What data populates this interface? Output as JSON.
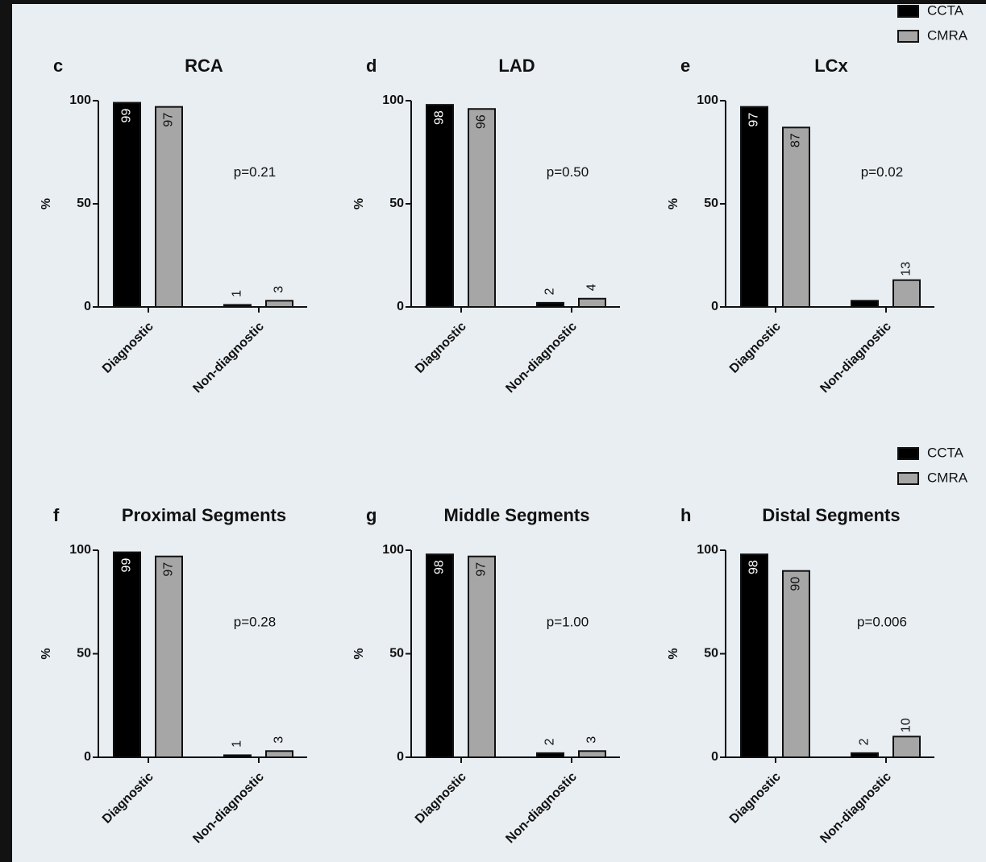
{
  "chart_data": [
    {
      "type": "bar",
      "panel": "c",
      "title": "RCA",
      "ylabel": "%",
      "annotation": "p=0.21",
      "categories": [
        "Diagnostic",
        "Non-diagnostic"
      ],
      "series": [
        {
          "name": "CCTA",
          "color": "#000000",
          "values": [
            99,
            1
          ]
        },
        {
          "name": "CMRA",
          "color": "#a6a6a6",
          "values": [
            97,
            3
          ]
        }
      ],
      "ylim": [
        0,
        100
      ],
      "yticks": [
        0,
        50,
        100
      ]
    },
    {
      "type": "bar",
      "panel": "d",
      "title": "LAD",
      "ylabel": "%",
      "annotation": "p=0.50",
      "categories": [
        "Diagnostic",
        "Non-diagnostic"
      ],
      "series": [
        {
          "name": "CCTA",
          "color": "#000000",
          "values": [
            98,
            2
          ]
        },
        {
          "name": "CMRA",
          "color": "#a6a6a6",
          "values": [
            96,
            4
          ]
        }
      ],
      "ylim": [
        0,
        100
      ],
      "yticks": [
        0,
        50,
        100
      ]
    },
    {
      "type": "bar",
      "panel": "e",
      "title": "LCx",
      "ylabel": "%",
      "annotation": "p=0.02",
      "categories": [
        "Diagnostic",
        "Non-diagnostic"
      ],
      "series": [
        {
          "name": "CCTA",
          "color": "#000000",
          "values": [
            97,
            3
          ],
          "value_labels": [
            "97",
            null
          ]
        },
        {
          "name": "CMRA",
          "color": "#a6a6a6",
          "values": [
            87,
            13
          ]
        }
      ],
      "ylim": [
        0,
        100
      ],
      "yticks": [
        0,
        50,
        100
      ],
      "legend": "top-right"
    },
    {
      "type": "bar",
      "panel": "f",
      "title": "Proximal Segments",
      "ylabel": "%",
      "annotation": "p=0.28",
      "categories": [
        "Diagnostic",
        "Non-diagnostic"
      ],
      "series": [
        {
          "name": "CCTA",
          "color": "#000000",
          "values": [
            99,
            1
          ]
        },
        {
          "name": "CMRA",
          "color": "#a6a6a6",
          "values": [
            97,
            3
          ]
        }
      ],
      "ylim": [
        0,
        100
      ],
      "yticks": [
        0,
        50,
        100
      ]
    },
    {
      "type": "bar",
      "panel": "g",
      "title": "Middle Segments",
      "ylabel": "%",
      "annotation": "p=1.00",
      "categories": [
        "Diagnostic",
        "Non-diagnostic"
      ],
      "series": [
        {
          "name": "CCTA",
          "color": "#000000",
          "values": [
            98,
            2
          ]
        },
        {
          "name": "CMRA",
          "color": "#a6a6a6",
          "values": [
            97,
            3
          ]
        }
      ],
      "ylim": [
        0,
        100
      ],
      "yticks": [
        0,
        50,
        100
      ]
    },
    {
      "type": "bar",
      "panel": "h",
      "title": "Distal Segments",
      "ylabel": "%",
      "annotation": "p=0.006",
      "categories": [
        "Diagnostic",
        "Non-diagnostic"
      ],
      "series": [
        {
          "name": "CCTA",
          "color": "#000000",
          "values": [
            98,
            2
          ]
        },
        {
          "name": "CMRA",
          "color": "#a6a6a6",
          "values": [
            90,
            10
          ]
        }
      ],
      "ylim": [
        0,
        100
      ],
      "yticks": [
        0,
        50,
        100
      ],
      "legend": "top-right"
    }
  ]
}
